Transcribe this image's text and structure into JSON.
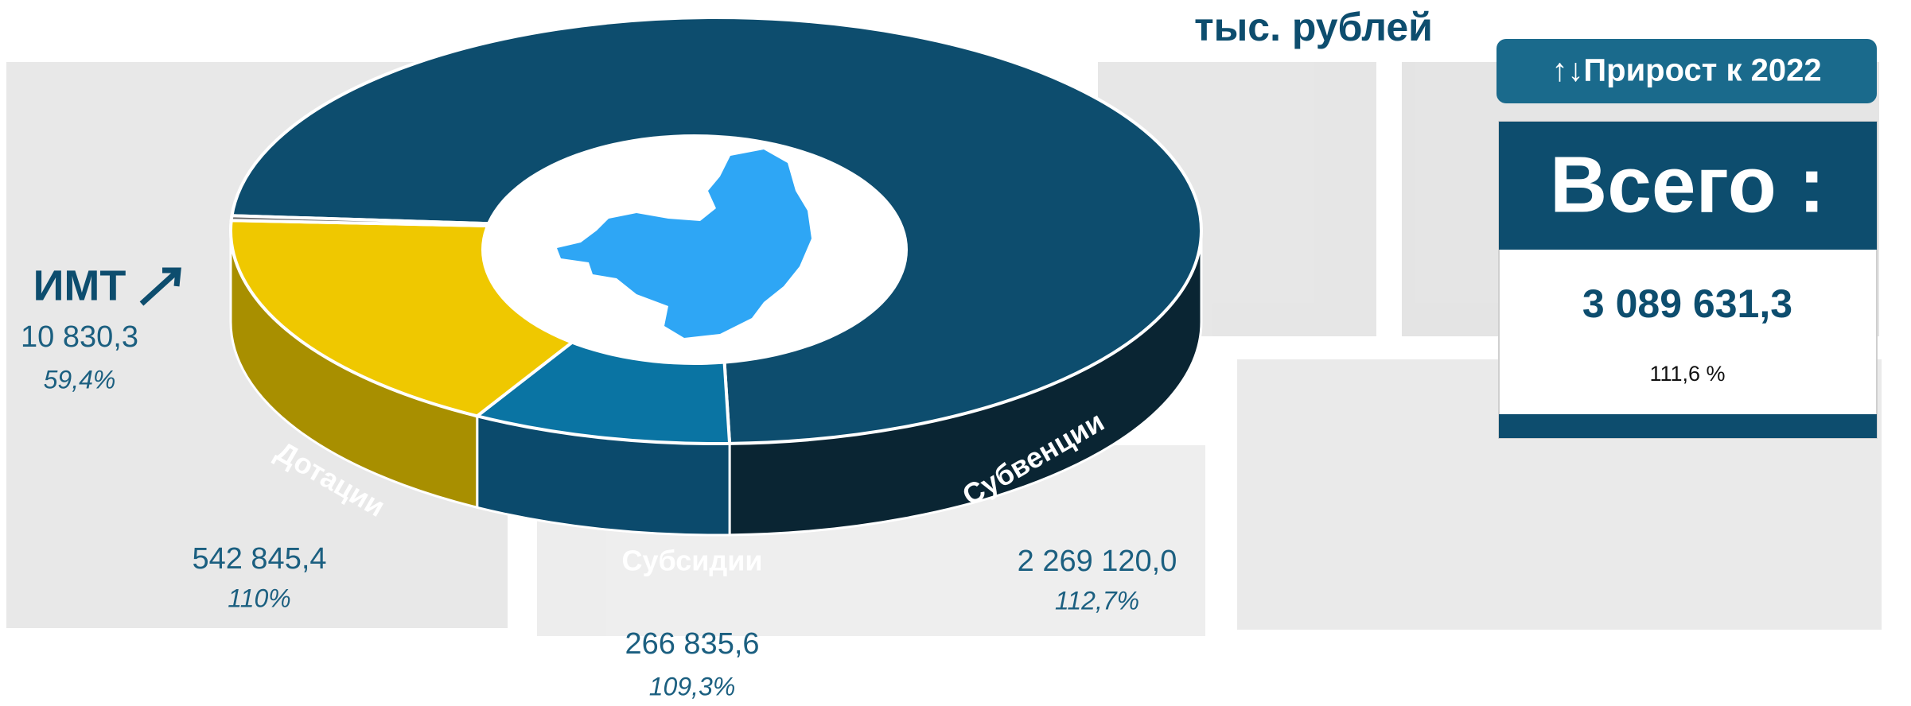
{
  "chart_data": {
    "type": "pie",
    "unit": "тыс. рублей",
    "categories": [
      "Субвенции",
      "Субсидии",
      "Дотации",
      "ИМТ"
    ],
    "values": [
      2269120.0,
      266835.6,
      542845.4,
      10830.3
    ],
    "value_labels": [
      "2 269 120,0",
      "266 835,6",
      "542 845,4",
      "10 830,3"
    ],
    "growth_labels": [
      "112,7%",
      "109,3%",
      "110%",
      "59,4%"
    ],
    "colors": [
      "#0d4d6e",
      "#0a74a3",
      "#efc800",
      "#6b6b6b"
    ],
    "side_colors": [
      "#0a2533",
      "#0b4a6c",
      "#a88f00",
      "#3a3a3a"
    ],
    "badge": "↑↓Прирост к 2022",
    "total_label": "Всего :",
    "total_value_label": "3 089 631,3",
    "total_growth_label": "111,6 %"
  }
}
